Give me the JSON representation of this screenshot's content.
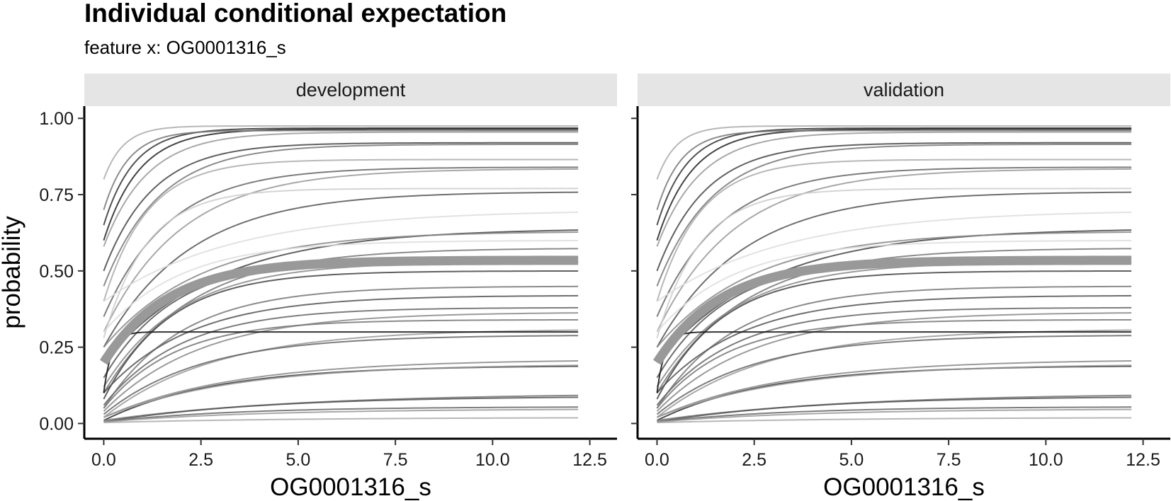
{
  "chart_data": {
    "type": "line",
    "title": "Individual conditional expectation",
    "subtitle": "feature x: OG0001316_s",
    "xlabel": "OG0001316_s",
    "ylabel": "probability",
    "xlim": [
      -0.5,
      13.2
    ],
    "ylim": [
      -0.05,
      1.04
    ],
    "x_ticks": [
      "0.0",
      "2.5",
      "5.0",
      "7.5",
      "10.0",
      "12.5"
    ],
    "y_ticks": [
      "0.00",
      "0.25",
      "0.50",
      "0.75",
      "1.00"
    ],
    "grid": false,
    "legend": "none",
    "x_range": [
      0,
      12.2
    ],
    "panels": [
      {
        "name": "development"
      },
      {
        "name": "validation"
      }
    ],
    "pd_curve": {
      "start": 0.2,
      "end": 0.535,
      "rate": 0.6,
      "color": "#999999"
    },
    "ice_curves": [
      {
        "start": 0.8,
        "end": 0.975,
        "rate": 2.0,
        "shade": "#aaaaaa"
      },
      {
        "start": 0.65,
        "end": 0.968,
        "rate": 1.3,
        "shade": "#333333"
      },
      {
        "start": 0.6,
        "end": 0.965,
        "rate": 1.1,
        "shade": "#222222"
      },
      {
        "start": 0.7,
        "end": 0.96,
        "rate": 1.6,
        "shade": "#777777"
      },
      {
        "start": 0.58,
        "end": 0.955,
        "rate": 0.9,
        "shade": "#999999"
      },
      {
        "start": 0.5,
        "end": 0.92,
        "rate": 0.8,
        "shade": "#444444"
      },
      {
        "start": 0.45,
        "end": 0.915,
        "rate": 0.7,
        "shade": "#777777"
      },
      {
        "start": 0.4,
        "end": 0.865,
        "rate": 0.9,
        "shade": "#aaaaaa"
      },
      {
        "start": 0.35,
        "end": 0.84,
        "rate": 0.6,
        "shade": "#666666"
      },
      {
        "start": 0.3,
        "end": 0.835,
        "rate": 0.5,
        "shade": "#999999"
      },
      {
        "start": 0.28,
        "end": 0.77,
        "rate": 0.9,
        "shade": "#cccccc"
      },
      {
        "start": 0.25,
        "end": 0.76,
        "rate": 0.45,
        "shade": "#555555"
      },
      {
        "start": 0.4,
        "end": 0.7,
        "rate": 0.3,
        "shade": "#dddddd"
      },
      {
        "start": 0.2,
        "end": 0.64,
        "rate": 0.35,
        "shade": "#444444"
      },
      {
        "start": 0.25,
        "end": 0.63,
        "rate": 0.4,
        "shade": "#888888"
      },
      {
        "start": 0.3,
        "end": 0.6,
        "rate": 0.5,
        "shade": "#dddddd"
      },
      {
        "start": 0.1,
        "end": 0.575,
        "rate": 0.45,
        "shade": "#777777"
      },
      {
        "start": 0.15,
        "end": 0.545,
        "rate": 0.55,
        "shade": "#555555"
      },
      {
        "start": 0.12,
        "end": 0.53,
        "rate": 0.5,
        "shade": "#888888"
      },
      {
        "start": 0.08,
        "end": 0.5,
        "rate": 0.6,
        "shade": "#444444"
      },
      {
        "start": 0.05,
        "end": 0.45,
        "rate": 0.5,
        "shade": "#777777"
      },
      {
        "start": 0.1,
        "end": 0.42,
        "rate": 0.45,
        "shade": "#555555"
      },
      {
        "start": 0.06,
        "end": 0.38,
        "rate": 0.5,
        "shade": "#666666"
      },
      {
        "start": 0.04,
        "end": 0.365,
        "rate": 0.4,
        "shade": "#888888"
      },
      {
        "start": 0.05,
        "end": 0.34,
        "rate": 0.55,
        "shade": "#777777"
      },
      {
        "start": 0.02,
        "end": 0.31,
        "rate": 0.35,
        "shade": "#999999"
      },
      {
        "start": 0.1,
        "end": 0.3,
        "rate": 5.0,
        "shade": "#111111"
      },
      {
        "start": 0.03,
        "end": 0.29,
        "rate": 0.4,
        "shade": "#666666"
      },
      {
        "start": 0.02,
        "end": 0.21,
        "rate": 0.3,
        "shade": "#888888"
      },
      {
        "start": 0.01,
        "end": 0.19,
        "rate": 0.35,
        "shade": "#333333"
      },
      {
        "start": 0.02,
        "end": 0.195,
        "rate": 0.3,
        "shade": "#999999"
      },
      {
        "start": 0.01,
        "end": 0.1,
        "rate": 0.2,
        "shade": "#777777"
      },
      {
        "start": 0.005,
        "end": 0.09,
        "rate": 0.25,
        "shade": "#555555"
      },
      {
        "start": 0.005,
        "end": 0.055,
        "rate": 0.3,
        "shade": "#666666"
      },
      {
        "start": 0.005,
        "end": 0.048,
        "rate": 0.25,
        "shade": "#999999"
      },
      {
        "start": 0.003,
        "end": 0.02,
        "rate": 0.2,
        "shade": "#aaaaaa"
      }
    ]
  }
}
